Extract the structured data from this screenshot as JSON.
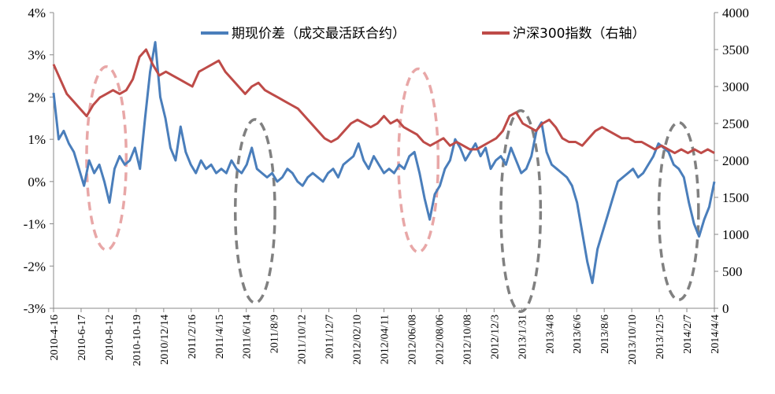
{
  "chart_data": {
    "type": "line",
    "left_axis": {
      "min": -3,
      "max": 4,
      "step": 1,
      "tick_labels": [
        "-3%",
        "-2%",
        "-1%",
        "0%",
        "1%",
        "2%",
        "3%",
        "4%"
      ]
    },
    "right_axis": {
      "min": 0,
      "max": 4000,
      "step": 500,
      "tick_labels": [
        "0",
        "500",
        "1000",
        "1500",
        "2000",
        "2500",
        "3000",
        "3500",
        "4000"
      ]
    },
    "x_labels": [
      "2010-4-16",
      "2010-6-17",
      "2010-8-12",
      "2010-10-19",
      "2010/12/14",
      "2011/2/16",
      "2011/4/15",
      "2011/6/14",
      "2011/8/9",
      "2011/10/12",
      "2011/12/7",
      "2012/02/10",
      "2012/04/11",
      "2012/06/08",
      "2012/08/06",
      "2012/10/08",
      "2012/12/3",
      "2013/1/31",
      "2013/4/8",
      "2013/6/6",
      "2013/8/6",
      "2013/10/10",
      "2013/12/5",
      "2014/2/7",
      "2014/4/4"
    ],
    "legend": "top-right",
    "series": [
      {
        "name": "期现价差（成交最活跃合约）",
        "axis": "left",
        "color": "#4a7ebb",
        "values": [
          2.1,
          1.0,
          1.2,
          0.9,
          0.7,
          0.3,
          -0.1,
          0.5,
          0.2,
          0.4,
          0.0,
          -0.5,
          0.3,
          0.6,
          0.4,
          0.5,
          0.8,
          0.3,
          1.5,
          2.6,
          3.3,
          2.0,
          1.5,
          0.8,
          0.5,
          1.3,
          0.7,
          0.4,
          0.2,
          0.5,
          0.3,
          0.4,
          0.2,
          0.3,
          0.2,
          0.5,
          0.3,
          0.2,
          0.4,
          0.8,
          0.3,
          0.2,
          0.1,
          0.2,
          0.0,
          0.1,
          0.3,
          0.2,
          0.0,
          -0.1,
          0.1,
          0.2,
          0.1,
          0.0,
          0.2,
          0.3,
          0.1,
          0.4,
          0.5,
          0.6,
          0.9,
          0.5,
          0.3,
          0.6,
          0.4,
          0.2,
          0.3,
          0.2,
          0.4,
          0.3,
          0.6,
          0.7,
          0.2,
          -0.4,
          -0.9,
          -0.3,
          -0.1,
          0.3,
          0.5,
          1.0,
          0.8,
          0.5,
          0.7,
          0.9,
          0.6,
          0.8,
          0.3,
          0.5,
          0.6,
          0.4,
          0.8,
          0.5,
          0.2,
          0.3,
          0.6,
          1.2,
          1.4,
          0.7,
          0.4,
          0.3,
          0.2,
          0.1,
          -0.1,
          -0.5,
          -1.2,
          -1.9,
          -2.4,
          -1.6,
          -1.2,
          -0.8,
          -0.4,
          0.0,
          0.1,
          0.2,
          0.3,
          0.1,
          0.2,
          0.4,
          0.6,
          0.9,
          0.8,
          0.7,
          0.4,
          0.3,
          0.1,
          -0.5,
          -1.0,
          -1.3,
          -0.9,
          -0.6,
          0.0
        ]
      },
      {
        "name": "沪深300指数（右轴）",
        "axis": "right",
        "color": "#be4b48",
        "values": [
          3300,
          3100,
          2900,
          2800,
          2700,
          2600,
          2750,
          2850,
          2900,
          2950,
          2900,
          2950,
          3100,
          3400,
          3500,
          3300,
          3150,
          3200,
          3150,
          3100,
          3050,
          3000,
          3200,
          3250,
          3300,
          3350,
          3200,
          3100,
          3000,
          2900,
          3000,
          3050,
          2950,
          2900,
          2850,
          2800,
          2750,
          2700,
          2600,
          2500,
          2400,
          2300,
          2250,
          2300,
          2400,
          2500,
          2550,
          2500,
          2450,
          2500,
          2600,
          2500,
          2550,
          2450,
          2400,
          2350,
          2250,
          2200,
          2250,
          2300,
          2200,
          2250,
          2200,
          2150,
          2150,
          2200,
          2250,
          2300,
          2400,
          2600,
          2650,
          2500,
          2450,
          2400,
          2500,
          2550,
          2450,
          2300,
          2250,
          2250,
          2200,
          2300,
          2400,
          2450,
          2400,
          2350,
          2300,
          2300,
          2250,
          2250,
          2200,
          2150,
          2200,
          2150,
          2100,
          2150,
          2100,
          2150,
          2100,
          2150,
          2100
        ]
      }
    ]
  },
  "ellipses": [
    {
      "color": "#e8a7a7",
      "cx_frac": 0.08,
      "cy_value": 0.55,
      "rx_frac": 0.03,
      "ry_frac": 0.31
    },
    {
      "color": "#808080",
      "cx_frac": 0.305,
      "cy_value": -0.7,
      "rx_frac": 0.03,
      "ry_frac": 0.31
    },
    {
      "color": "#e8a7a7",
      "cx_frac": 0.552,
      "cy_value": 0.5,
      "rx_frac": 0.03,
      "ry_frac": 0.31
    },
    {
      "color": "#808080",
      "cx_frac": 0.707,
      "cy_value": -0.7,
      "rx_frac": 0.03,
      "ry_frac": 0.34
    },
    {
      "color": "#808080",
      "cx_frac": 0.946,
      "cy_value": -0.7,
      "rx_frac": 0.03,
      "ry_frac": 0.3
    }
  ]
}
